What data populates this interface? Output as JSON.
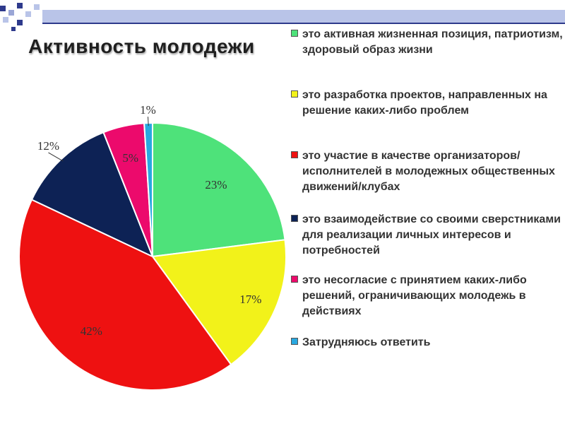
{
  "slide": {
    "title": "Активность молодежи"
  },
  "colors": {
    "deco_blue": "#2e3a8c",
    "deco_light": "#b9c4e8"
  },
  "chart_data": {
    "type": "pie",
    "title": "",
    "unit": "%",
    "legend_position": "right",
    "slices": [
      {
        "label": "это активная жизненная позиция, патриотизм, здоровый образ жизни",
        "value": 23,
        "value_label": "23%",
        "color": "#4ee27a"
      },
      {
        "label": "это разработка проектов, направленных на решение каких-либо проблем",
        "value": 17,
        "value_label": "17%",
        "color": "#f2f21a"
      },
      {
        "label": "это участие в качестве организаторов/исполнителей в молодежных общественных движений/клубах",
        "value": 42,
        "value_label": "42%",
        "color": "#ee1111"
      },
      {
        "label": "это взаимодействие со своими сверстниками для реализации личных интересов и потребностей",
        "value": 12,
        "value_label": "12%",
        "color": "#0d2255"
      },
      {
        "label": "это несогласие с принятием каких-либо решений, ограничивающих молодежь в действиях",
        "value": 5,
        "value_label": "5%",
        "color": "#ec0a6c"
      },
      {
        "label": "Затрудняюсь ответить",
        "value": 1,
        "value_label": "1%",
        "color": "#29a8e0"
      }
    ]
  }
}
